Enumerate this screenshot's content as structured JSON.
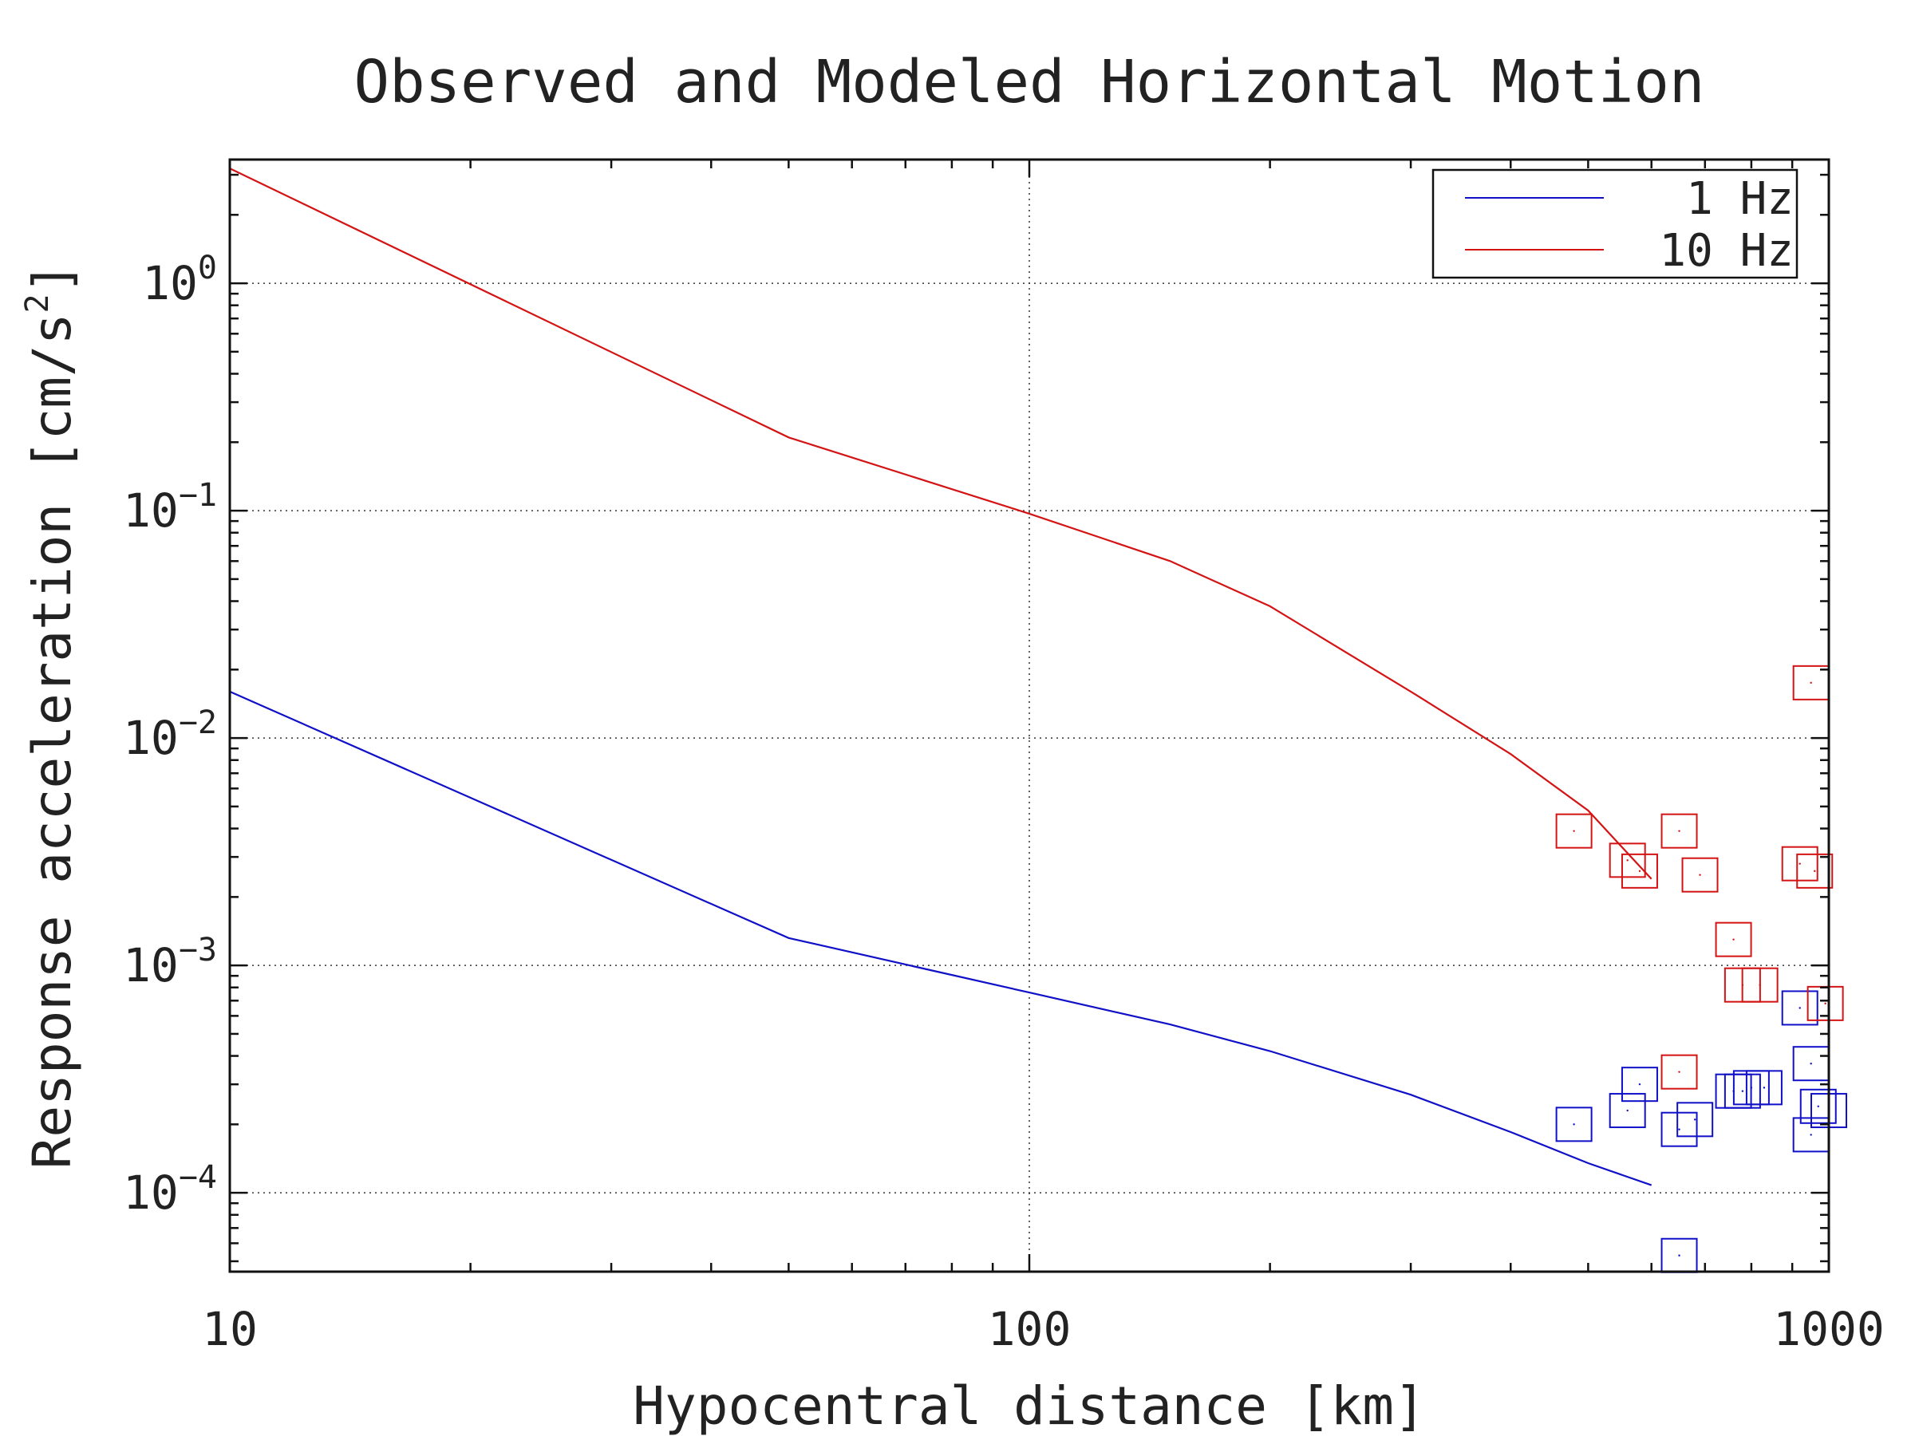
{
  "chart_data": {
    "type": "line",
    "title": "Observed and Modeled Horizontal Motion",
    "xlabel": "Hypocentral distance [km]",
    "ylabel_main": "Response acceleration [cm/s",
    "ylabel_sup": "2",
    "ylabel_close": "]",
    "x_scale": "log",
    "y_scale": "log",
    "xlim": [
      10,
      1000
    ],
    "ylim": [
      4.5e-05,
      3.5
    ],
    "grid": true,
    "legend_position": "top-right",
    "x_ticks": [
      {
        "value": 10,
        "label": "10"
      },
      {
        "value": 100,
        "label": "100"
      },
      {
        "value": 1000,
        "label": "1000"
      }
    ],
    "y_ticks": [
      {
        "value": 1,
        "base": "10",
        "exp": "0"
      },
      {
        "value": 0.1,
        "base": "10",
        "exp": "−1"
      },
      {
        "value": 0.01,
        "base": "10",
        "exp": "−2"
      },
      {
        "value": 0.001,
        "base": "10",
        "exp": "−3"
      },
      {
        "value": 0.0001,
        "base": "10",
        "exp": "−4"
      }
    ],
    "series": [
      {
        "name": "1 Hz",
        "color": "#1010c8",
        "x": [
          10,
          50,
          100,
          150,
          200,
          300,
          400,
          500,
          600
        ],
        "y": [
          0.016,
          0.00132,
          0.00076,
          0.00055,
          0.00042,
          0.00027,
          0.000185,
          0.000135,
          0.000108
        ]
      },
      {
        "name": "10 Hz",
        "color": "#d41414",
        "x": [
          10,
          50,
          100,
          150,
          200,
          300,
          400,
          500,
          600
        ],
        "y": [
          3.2,
          0.21,
          0.097,
          0.06,
          0.038,
          0.016,
          0.0085,
          0.0048,
          0.0024
        ]
      }
    ],
    "observed": [
      {
        "name": "1 Hz",
        "color": "#1010c8",
        "x": [
          480,
          560,
          580,
          650,
          650,
          680,
          760,
          780,
          800,
          830,
          920,
          950,
          950,
          970,
          1000
        ],
        "y": [
          0.0002,
          0.00023,
          0.0003,
          5.3e-05,
          0.00019,
          0.00021,
          0.00028,
          0.00028,
          0.00029,
          0.00029,
          0.00065,
          0.00018,
          0.00037,
          0.00024,
          0.00023
        ]
      },
      {
        "name": "10 Hz",
        "color": "#d41414",
        "x": [
          480,
          560,
          580,
          650,
          650,
          690,
          760,
          780,
          820,
          920,
          950,
          960,
          990
        ],
        "y": [
          0.0039,
          0.0029,
          0.0026,
          0.0039,
          0.00034,
          0.0025,
          0.0013,
          0.00082,
          0.00082,
          0.0028,
          0.0175,
          0.0026,
          0.00068
        ]
      }
    ]
  }
}
